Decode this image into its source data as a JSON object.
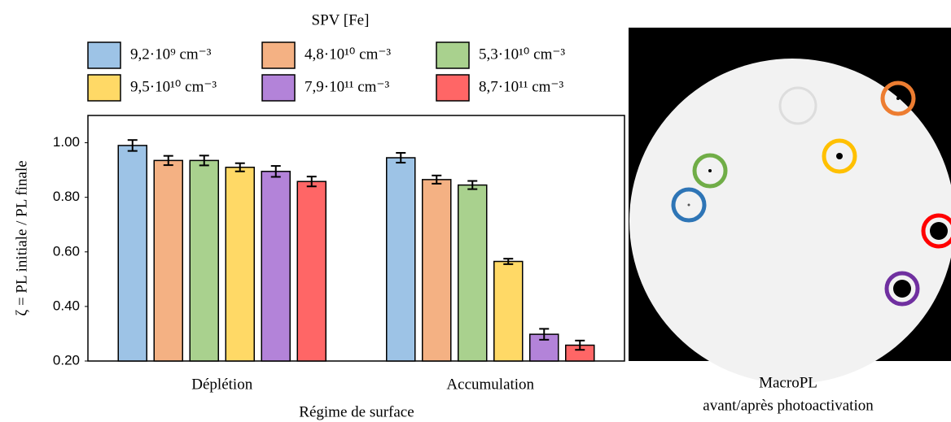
{
  "chart_data": {
    "type": "bar",
    "legend_title": "SPV [Fe]",
    "y_label": "ζ = PL initiale / PL finale",
    "x_label": "Régime de surface",
    "annotations": [
      "MacroPL",
      "avant/après photoactivation"
    ],
    "categories": [
      "Déplétion",
      "Accumulation"
    ],
    "series": [
      {
        "name": "9,2·10⁹ cm⁻³",
        "color": "#9dc3e6",
        "values": [
          0.99,
          0.945
        ],
        "errors": [
          0.02,
          0.018
        ]
      },
      {
        "name": "4,8·10¹⁰ cm⁻³",
        "color": "#f4b183",
        "values": [
          0.935,
          0.865
        ],
        "errors": [
          0.017,
          0.015
        ]
      },
      {
        "name": "5,3·10¹⁰ cm⁻³",
        "color": "#a9d18e",
        "values": [
          0.935,
          0.845
        ],
        "errors": [
          0.018,
          0.015
        ]
      },
      {
        "name": "9,5·10¹⁰ cm⁻³",
        "color": "#ffd966",
        "values": [
          0.91,
          0.565
        ],
        "errors": [
          0.015,
          0.01
        ]
      },
      {
        "name": "7,9·10¹¹ cm⁻³",
        "color": "#b383d9",
        "values": [
          0.895,
          0.298
        ],
        "errors": [
          0.02,
          0.02
        ]
      },
      {
        "name": "8,7·10¹¹ cm⁻³",
        "color": "#ff6666",
        "values": [
          0.858,
          0.258
        ],
        "errors": [
          0.018,
          0.017
        ]
      }
    ],
    "ylim": [
      0.2,
      1.1
    ],
    "yticks": [
      {
        "value": 0.2,
        "label": "0.20"
      },
      {
        "value": 0.4,
        "label": "0.40"
      },
      {
        "value": 0.6,
        "label": "0.60"
      },
      {
        "value": 0.8,
        "label": "0.80"
      },
      {
        "value": 1.0,
        "label": "1.00"
      }
    ],
    "grid": false
  }
}
